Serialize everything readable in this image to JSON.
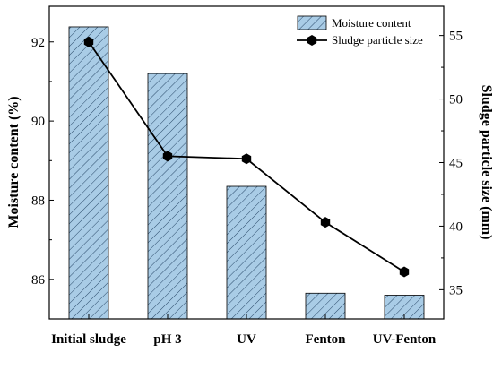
{
  "chart_data": {
    "type": "bar",
    "categories": [
      "Initial sludge",
      "pH 3",
      "UV",
      "Fenton",
      "UV-Fenton"
    ],
    "series": [
      {
        "name": "Moisture content",
        "type": "bar",
        "axis": "left",
        "values": [
          92.38,
          91.2,
          88.35,
          85.65,
          85.6
        ],
        "color": "#a9cce6",
        "hatch": "diagonal"
      },
      {
        "name": "Sludge particle size",
        "type": "line",
        "axis": "right",
        "values": [
          54.5,
          45.5,
          45.3,
          40.3,
          36.4
        ],
        "color": "#000000",
        "marker": "hexagon"
      }
    ],
    "ylabel": "Moisture content (%)",
    "y2label": "Sludge particle size (mm)",
    "ylim": [
      85.0,
      92.9
    ],
    "y2lim": [
      32.7,
      57.3
    ],
    "yticks": [
      86,
      88,
      90,
      92
    ],
    "y2ticks": [
      35,
      40,
      45,
      50,
      55
    ],
    "legend_position": "top-right",
    "grid": false
  }
}
